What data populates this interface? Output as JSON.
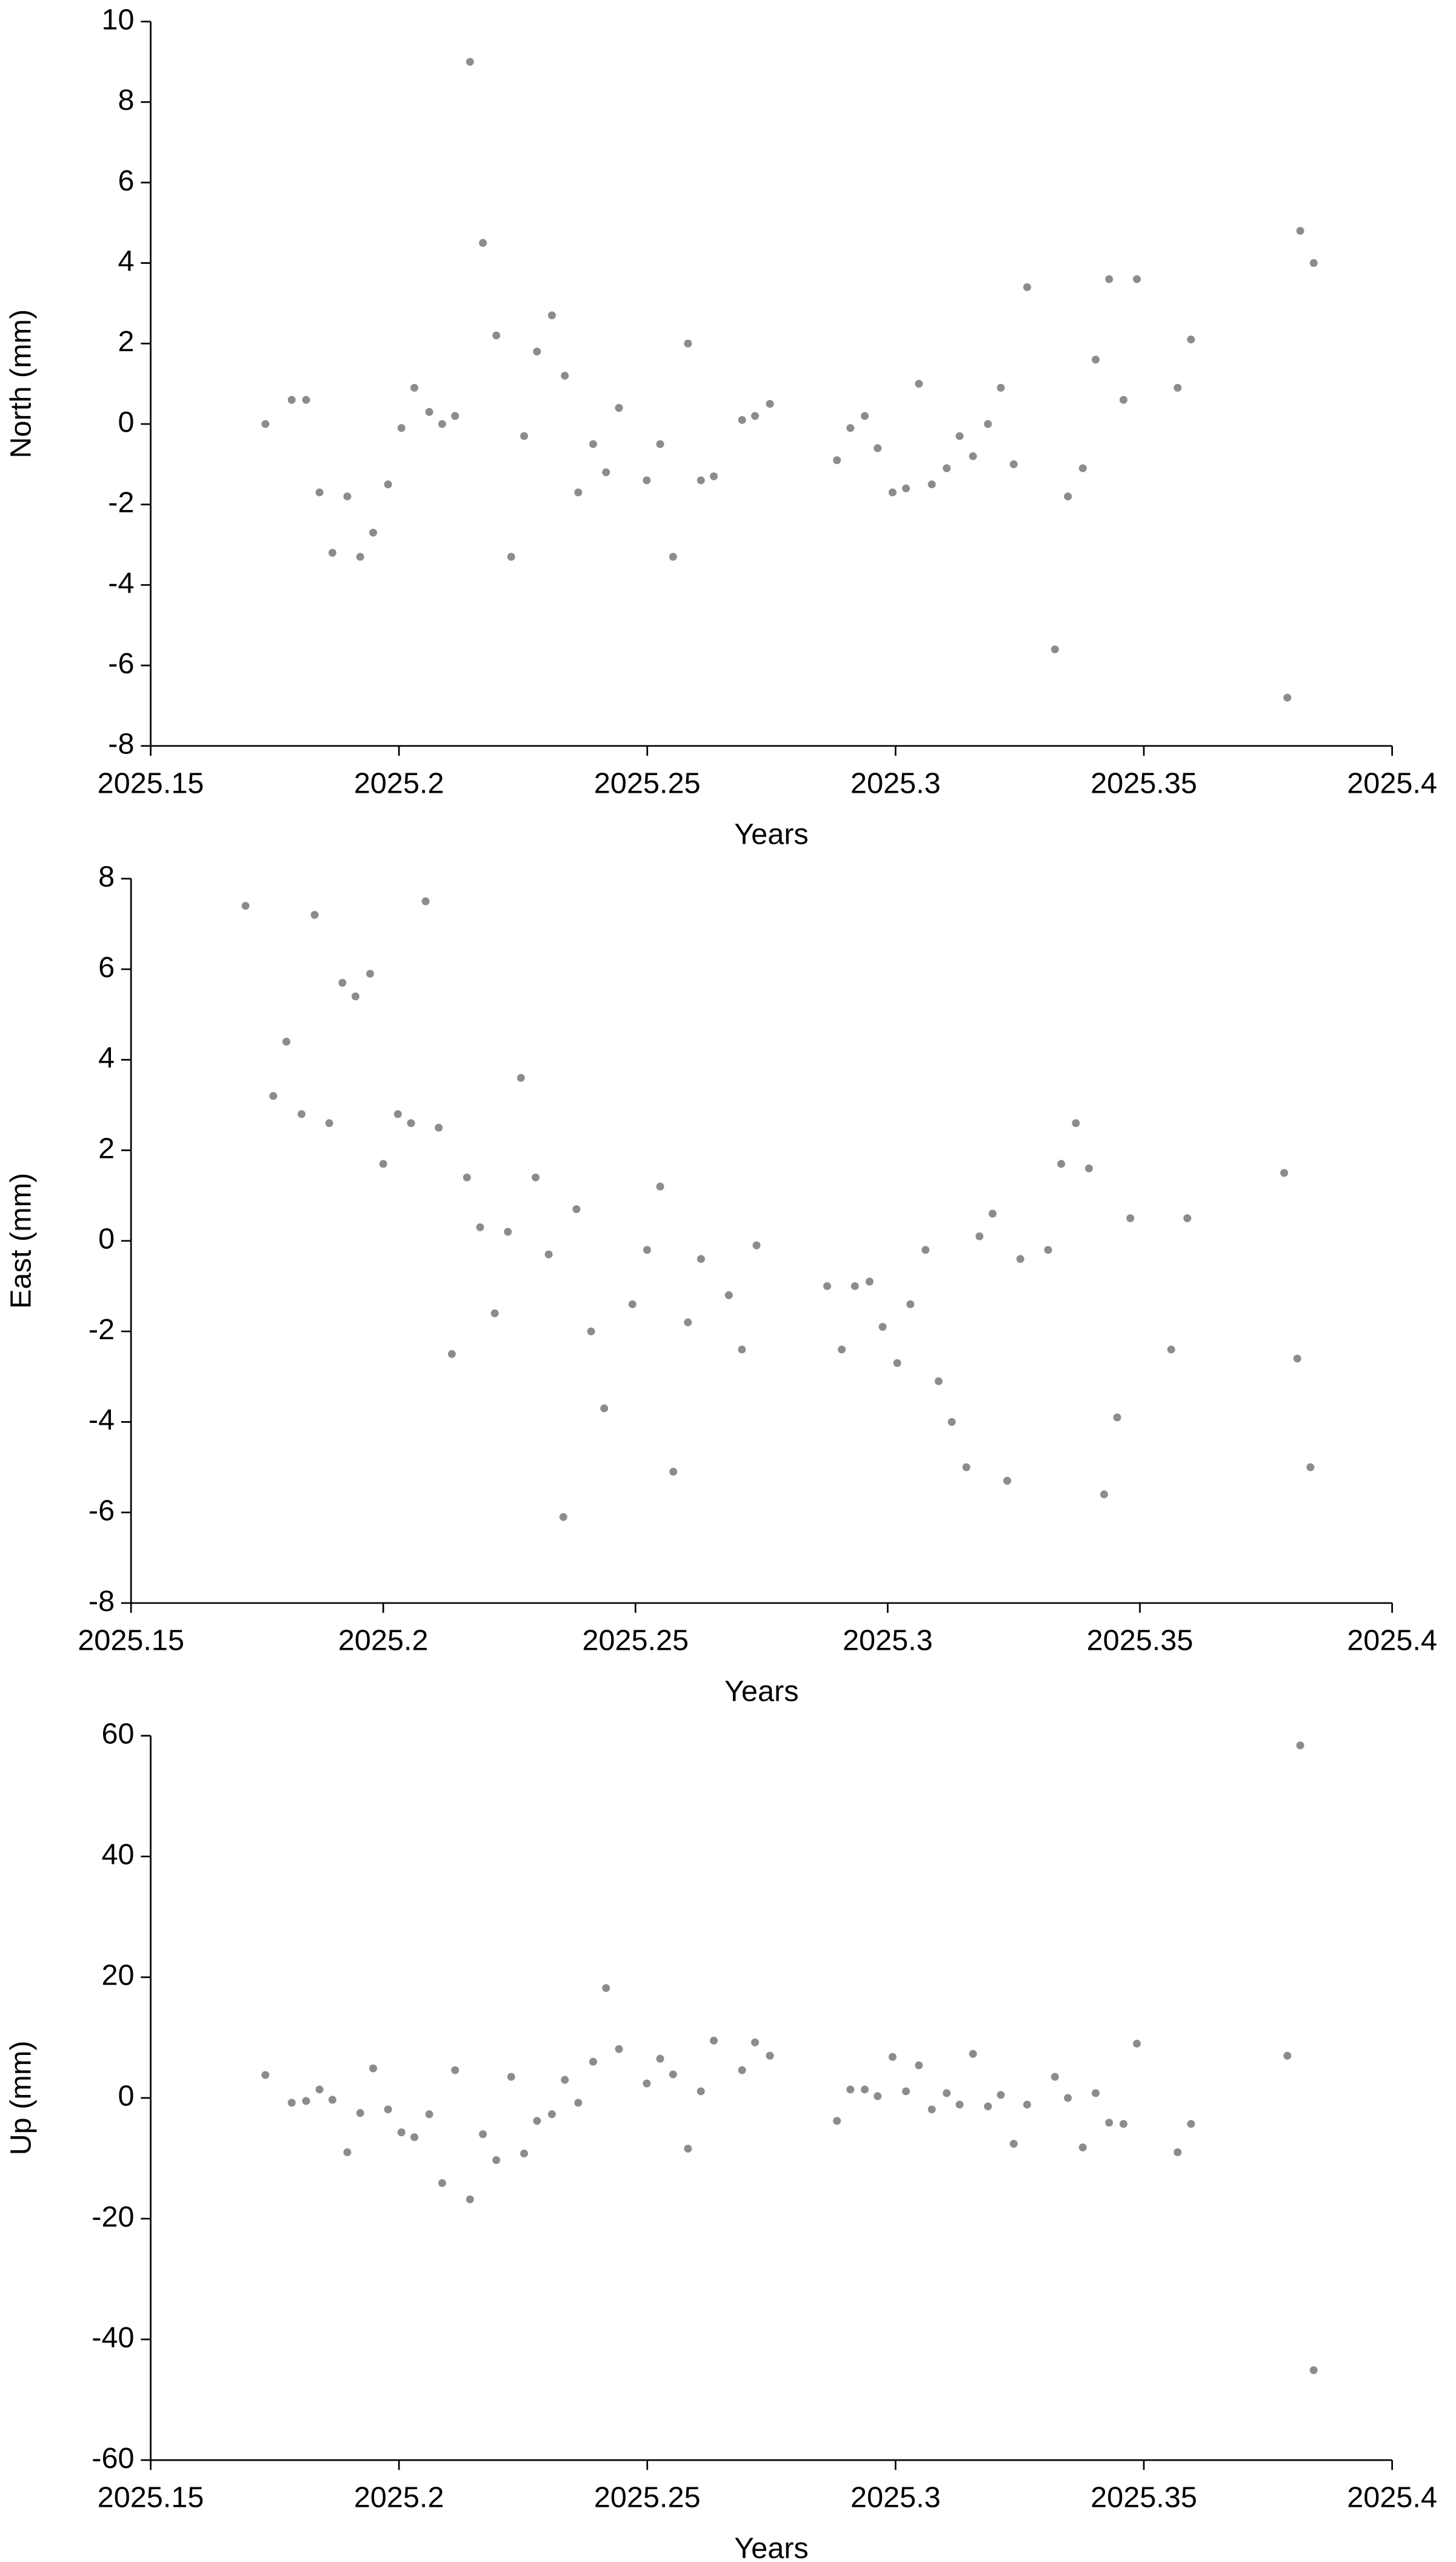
{
  "chart_data": [
    {
      "type": "scatter",
      "x_label": "Years",
      "y_label": "North (mm)",
      "color": "#8c8c8c",
      "x": [
        2025.1731,
        2025.1784,
        2025.1813,
        2025.184,
        2025.1866,
        2025.1896,
        2025.1922,
        2025.1948,
        2025.1978,
        2025.2005,
        2025.2031,
        2025.2061,
        2025.2087,
        2025.2113,
        2025.2143,
        2025.2169,
        2025.2196,
        2025.2226,
        2025.2252,
        2025.2278,
        2025.2308,
        2025.2334,
        2025.2361,
        2025.2391,
        2025.2417,
        2025.2443,
        2025.2499,
        2025.2526,
        2025.2552,
        2025.2582,
        2025.2608,
        2025.2634,
        2025.2691,
        2025.2717,
        2025.2747,
        2025.2882,
        2025.2909,
        2025.2938,
        2025.2964,
        2025.2994,
        2025.3021,
        2025.3047,
        2025.3073,
        2025.3103,
        2025.3129,
        2025.3156,
        2025.3186,
        2025.3212,
        2025.3238,
        2025.3265,
        2025.3321,
        2025.3347,
        2025.3377,
        2025.3403,
        2025.343,
        2025.3459,
        2025.3486,
        2025.3568,
        2025.3595,
        2025.3789,
        2025.3815,
        2025.3842
      ],
      "values": [
        0,
        0.6,
        0.6,
        -1.7,
        -3.2,
        -1.8,
        -3.3,
        -2.7,
        -1.5,
        -0.1,
        0.9,
        0.3,
        0,
        0.2,
        9,
        4.5,
        2.2,
        -3.3,
        -0.3,
        1.8,
        2.7,
        1.2,
        -1.7,
        -0.5,
        -1.2,
        0.4,
        -1.4,
        -0.5,
        -3.3,
        2,
        -1.4,
        -1.3,
        0.1,
        0.2,
        0.5,
        -0.9,
        -0.1,
        0.2,
        -0.6,
        -1.7,
        -1.6,
        1,
        -1.5,
        -1.1,
        -0.3,
        -0.8,
        0,
        0.9,
        -1,
        3.4,
        -5.6,
        -1.8,
        -1.1,
        1.6,
        3.6,
        0.6,
        3.6,
        0.9,
        2.1,
        -6.8,
        4.8,
        4
      ],
      "xlim": [
        2025.15,
        2025.4
      ],
      "xticks": [
        2025.15,
        2025.2,
        2025.25,
        2025.3,
        2025.35,
        2025.4
      ],
      "ylim": [
        -8,
        10
      ],
      "yticks": [
        -8,
        -6,
        -4,
        -2,
        0,
        2,
        4,
        6,
        8,
        10
      ]
    },
    {
      "type": "scatter",
      "x_label": "Years",
      "y_label": "East (mm)",
      "color": "#8c8c8c",
      "x": [
        2025.1727,
        2025.1782,
        2025.1808,
        2025.1838,
        2025.1864,
        2025.1893,
        2025.1919,
        2025.1945,
        2025.1974,
        2025.2,
        2025.2029,
        2025.2055,
        2025.2084,
        2025.211,
        2025.2136,
        2025.2166,
        2025.2192,
        2025.2221,
        2025.2247,
        2025.2273,
        2025.2302,
        2025.2328,
        2025.2357,
        2025.2383,
        2025.2412,
        2025.2438,
        2025.2494,
        2025.2523,
        2025.2549,
        2025.2575,
        2025.2604,
        2025.263,
        2025.2685,
        2025.2711,
        2025.274,
        2025.288,
        2025.2909,
        2025.2935,
        2025.2964,
        2025.299,
        2025.3019,
        2025.3045,
        2025.3075,
        2025.3101,
        2025.3127,
        2025.3156,
        2025.3182,
        2025.3208,
        2025.3237,
        2025.3263,
        2025.3318,
        2025.3344,
        2025.3373,
        2025.3399,
        2025.3429,
        2025.3455,
        2025.3481,
        2025.3562,
        2025.3594,
        2025.3786,
        2025.3812,
        2025.3838
      ],
      "values": [
        7.4,
        3.2,
        4.4,
        2.8,
        7.2,
        2.6,
        5.7,
        5.4,
        5.9,
        1.7,
        2.8,
        2.6,
        7.5,
        2.5,
        -2.5,
        1.4,
        0.3,
        -1.6,
        0.2,
        3.6,
        1.4,
        -0.3,
        -6.1,
        0.7,
        -2,
        -3.7,
        -1.4,
        -0.2,
        1.2,
        -5.1,
        -1.8,
        -0.4,
        -1.2,
        -2.4,
        -0.1,
        -1,
        -2.4,
        -1,
        -0.9,
        -1.9,
        -2.7,
        -1.4,
        -0.2,
        -3.1,
        -4,
        -5,
        0.1,
        0.6,
        -5.3,
        -0.4,
        -0.2,
        1.7,
        2.6,
        1.6,
        -5.6,
        -3.9,
        0.5,
        -2.4,
        0.5,
        1.5,
        -2.6,
        -5
      ],
      "xlim": [
        2025.15,
        2025.4
      ],
      "xticks": [
        2025.15,
        2025.2,
        2025.25,
        2025.3,
        2025.35,
        2025.4
      ],
      "ylim": [
        -8,
        8
      ],
      "yticks": [
        -8,
        -6,
        -4,
        -2,
        0,
        2,
        4,
        6,
        8
      ]
    },
    {
      "type": "scatter",
      "x_label": "Years",
      "y_label": "Up (mm)",
      "color": "#8c8c8c",
      "x": [
        2025.1731,
        2025.1784,
        2025.1813,
        2025.184,
        2025.1866,
        2025.1896,
        2025.1922,
        2025.1948,
        2025.1978,
        2025.2005,
        2025.2031,
        2025.2061,
        2025.2087,
        2025.2113,
        2025.2143,
        2025.2169,
        2025.2196,
        2025.2226,
        2025.2252,
        2025.2278,
        2025.2308,
        2025.2334,
        2025.2361,
        2025.2391,
        2025.2417,
        2025.2443,
        2025.2499,
        2025.2526,
        2025.2552,
        2025.2582,
        2025.2608,
        2025.2634,
        2025.2691,
        2025.2717,
        2025.2747,
        2025.2882,
        2025.2909,
        2025.2938,
        2025.2964,
        2025.2994,
        2025.3021,
        2025.3047,
        2025.3073,
        2025.3103,
        2025.3129,
        2025.3156,
        2025.3186,
        2025.3212,
        2025.3238,
        2025.3265,
        2025.3321,
        2025.3347,
        2025.3377,
        2025.3403,
        2025.343,
        2025.3459,
        2025.3486,
        2025.3568,
        2025.3595,
        2025.3789,
        2025.3815,
        2025.3842
      ],
      "values": [
        3.8,
        -0.8,
        -0.5,
        1.4,
        -0.3,
        -9,
        -2.5,
        4.9,
        -1.9,
        -5.7,
        -6.5,
        -2.7,
        -14.1,
        4.6,
        -16.8,
        -6,
        -10.3,
        3.5,
        -9.2,
        -3.8,
        -2.7,
        3,
        -0.8,
        6,
        18.2,
        8.1,
        2.4,
        6.5,
        3.9,
        -8.4,
        1.1,
        9.5,
        4.6,
        9.2,
        7,
        -3.8,
        1.4,
        1.4,
        0.3,
        6.8,
        1.1,
        5.4,
        -1.9,
        0.8,
        -1.1,
        7.3,
        -1.4,
        0.5,
        -7.6,
        -1.1,
        3.5,
        0,
        -8.2,
        0.8,
        -4.1,
        -4.3,
        9,
        -9,
        -4.3,
        7,
        58.4,
        -45.1
      ],
      "xlim": [
        2025.15,
        2025.4
      ],
      "xticks": [
        2025.15,
        2025.2,
        2025.25,
        2025.3,
        2025.35,
        2025.4
      ],
      "ylim": [
        -60,
        60
      ],
      "yticks": [
        -60,
        -40,
        -20,
        0,
        20,
        40,
        60
      ]
    }
  ]
}
